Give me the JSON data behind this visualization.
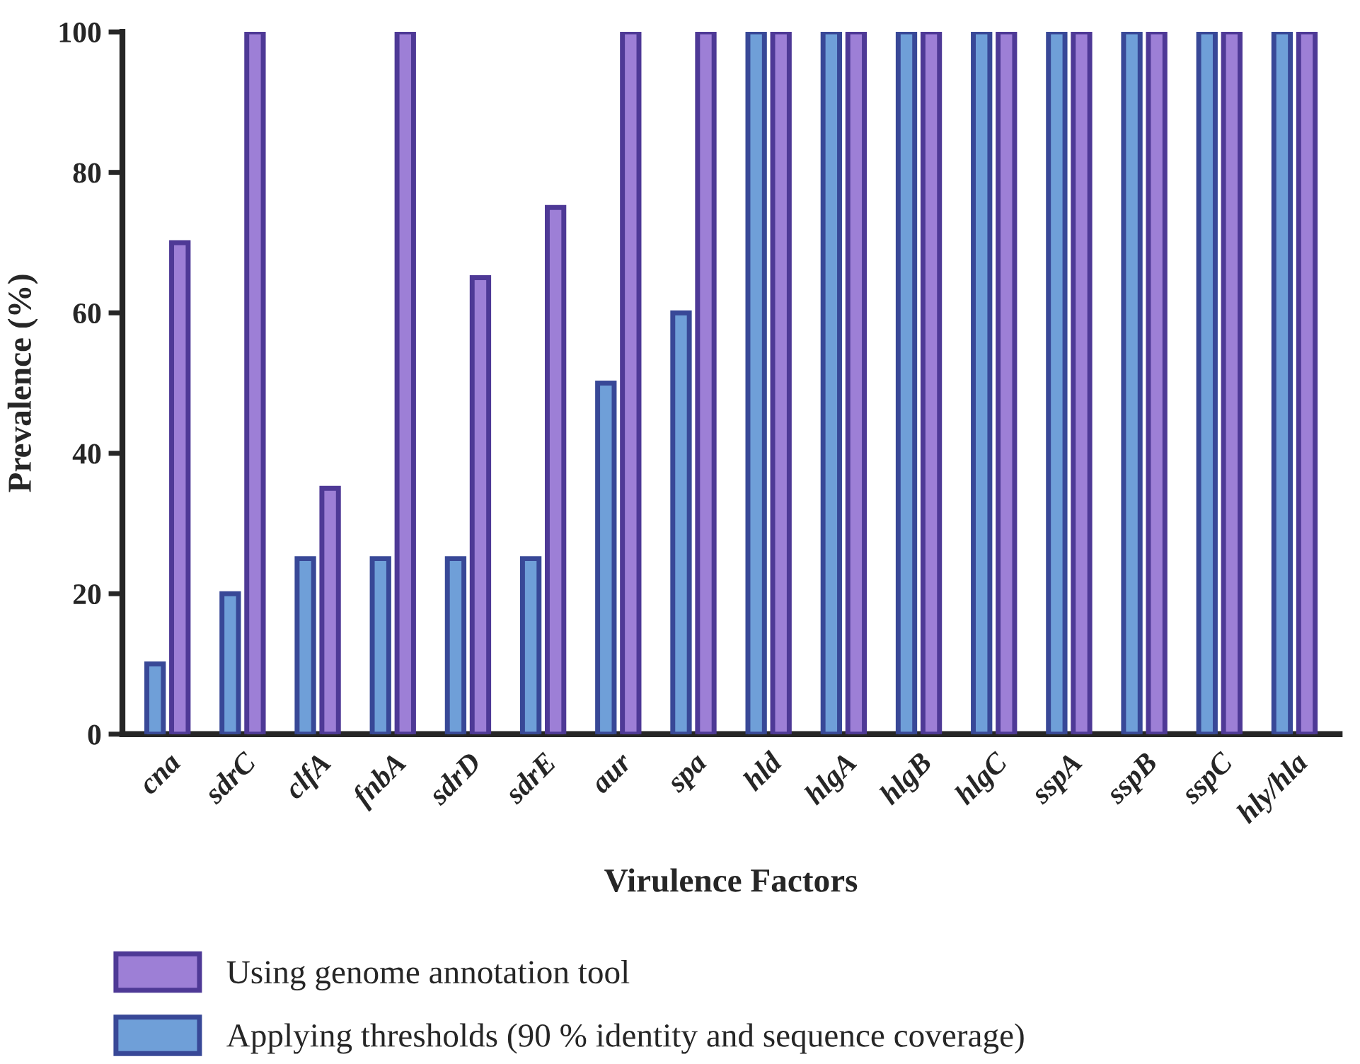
{
  "chart_data": {
    "type": "bar",
    "xlabel": "Virulence Factors",
    "ylabel": "Prevalence (%)",
    "categories": [
      "cna",
      "sdrC",
      "clfA",
      "fnbA",
      "sdrD",
      "sdrE",
      "aur",
      "spa",
      "hld",
      "hlgA",
      "hlgB",
      "hlgC",
      "sspA",
      "sspB",
      "sspC",
      "hly/hla"
    ],
    "series": [
      {
        "name": "Applying thresholds (90 % identity and sequence coverage)",
        "color": "#6f9fd8",
        "values": [
          10,
          20,
          25,
          25,
          25,
          25,
          50,
          60,
          100,
          100,
          100,
          100,
          100,
          100,
          100,
          100
        ]
      },
      {
        "name": "Using genome annotation tool",
        "color": "#9d7fd6",
        "values": [
          70,
          100,
          35,
          100,
          65,
          75,
          100,
          100,
          100,
          100,
          100,
          100,
          100,
          100,
          100,
          100
        ]
      }
    ],
    "ylim": [
      0,
      100
    ],
    "yticks": [
      0,
      20,
      40,
      60,
      80,
      100
    ],
    "grid": false,
    "legend": "bottom"
  }
}
